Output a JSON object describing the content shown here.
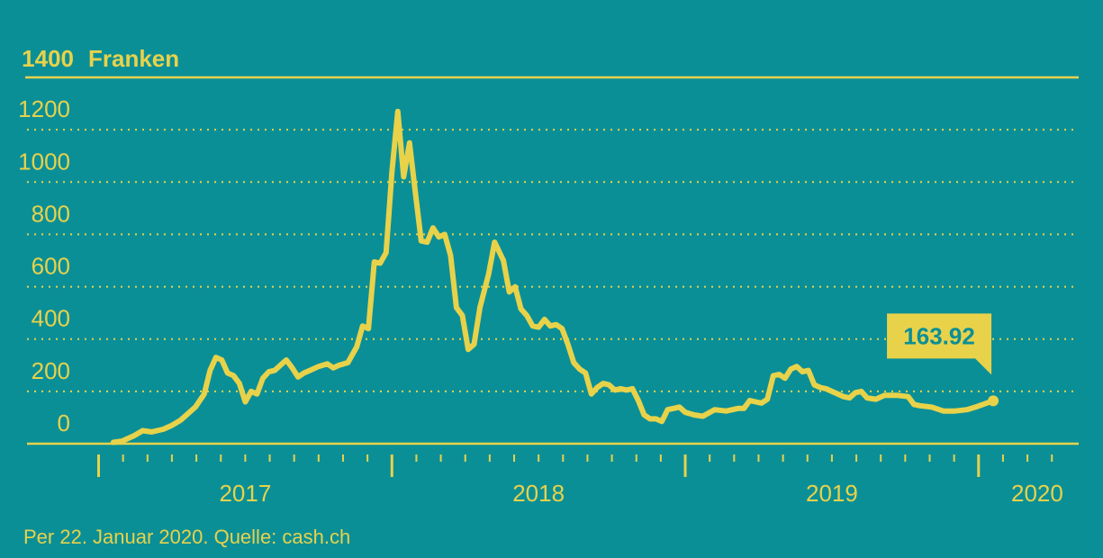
{
  "chart_data": {
    "type": "line",
    "ylabel": "Franken",
    "ylim": [
      0,
      1400
    ],
    "y_ticks": [
      0,
      200,
      400,
      600,
      800,
      1000,
      1200,
      1400
    ],
    "x_range": [
      2016.98,
      2020.28
    ],
    "x_year_labels": [
      {
        "label": "2017",
        "x": 2017.5
      },
      {
        "label": "2018",
        "x": 2018.5
      },
      {
        "label": "2019",
        "x": 2019.5
      },
      {
        "label": "2020",
        "x": 2020.2
      }
    ],
    "year_boundaries": [
      2017.0,
      2018.0,
      2019.0,
      2020.0
    ],
    "grid": true,
    "line_color": "#e8d24a",
    "series": [
      {
        "values": [
          [
            2017.05,
            5
          ],
          [
            2017.08,
            10
          ],
          [
            2017.12,
            30
          ],
          [
            2017.15,
            50
          ],
          [
            2017.18,
            45
          ],
          [
            2017.22,
            55
          ],
          [
            2017.25,
            70
          ],
          [
            2017.28,
            90
          ],
          [
            2017.3,
            110
          ],
          [
            2017.33,
            140
          ],
          [
            2017.36,
            190
          ],
          [
            2017.38,
            280
          ],
          [
            2017.4,
            330
          ],
          [
            2017.42,
            320
          ],
          [
            2017.44,
            270
          ],
          [
            2017.46,
            260
          ],
          [
            2017.48,
            230
          ],
          [
            2017.5,
            160
          ],
          [
            2017.52,
            200
          ],
          [
            2017.54,
            190
          ],
          [
            2017.56,
            250
          ],
          [
            2017.58,
            275
          ],
          [
            2017.6,
            280
          ],
          [
            2017.62,
            300
          ],
          [
            2017.64,
            320
          ],
          [
            2017.66,
            290
          ],
          [
            2017.68,
            255
          ],
          [
            2017.7,
            270
          ],
          [
            2017.72,
            280
          ],
          [
            2017.75,
            295
          ],
          [
            2017.78,
            305
          ],
          [
            2017.8,
            290
          ],
          [
            2017.82,
            300
          ],
          [
            2017.85,
            310
          ],
          [
            2017.88,
            370
          ],
          [
            2017.9,
            450
          ],
          [
            2017.92,
            440
          ],
          [
            2017.94,
            695
          ],
          [
            2017.96,
            690
          ],
          [
            2017.98,
            730
          ],
          [
            2018.0,
            1040
          ],
          [
            2018.02,
            1270
          ],
          [
            2018.04,
            1020
          ],
          [
            2018.06,
            1150
          ],
          [
            2018.08,
            960
          ],
          [
            2018.1,
            775
          ],
          [
            2018.12,
            770
          ],
          [
            2018.14,
            825
          ],
          [
            2018.16,
            790
          ],
          [
            2018.18,
            800
          ],
          [
            2018.2,
            720
          ],
          [
            2018.22,
            520
          ],
          [
            2018.24,
            490
          ],
          [
            2018.26,
            360
          ],
          [
            2018.28,
            380
          ],
          [
            2018.3,
            520
          ],
          [
            2018.33,
            650
          ],
          [
            2018.35,
            770
          ],
          [
            2018.38,
            700
          ],
          [
            2018.4,
            580
          ],
          [
            2018.42,
            600
          ],
          [
            2018.44,
            515
          ],
          [
            2018.46,
            490
          ],
          [
            2018.48,
            450
          ],
          [
            2018.5,
            445
          ],
          [
            2018.52,
            475
          ],
          [
            2018.54,
            450
          ],
          [
            2018.56,
            455
          ],
          [
            2018.58,
            440
          ],
          [
            2018.6,
            380
          ],
          [
            2018.62,
            310
          ],
          [
            2018.64,
            285
          ],
          [
            2018.66,
            270
          ],
          [
            2018.68,
            190
          ],
          [
            2018.7,
            215
          ],
          [
            2018.72,
            230
          ],
          [
            2018.74,
            225
          ],
          [
            2018.76,
            205
          ],
          [
            2018.78,
            210
          ],
          [
            2018.8,
            205
          ],
          [
            2018.82,
            210
          ],
          [
            2018.84,
            165
          ],
          [
            2018.86,
            110
          ],
          [
            2018.88,
            95
          ],
          [
            2018.9,
            95
          ],
          [
            2018.92,
            85
          ],
          [
            2018.94,
            130
          ],
          [
            2018.96,
            135
          ],
          [
            2018.98,
            140
          ],
          [
            2019.0,
            120
          ],
          [
            2019.03,
            110
          ],
          [
            2019.06,
            105
          ],
          [
            2019.1,
            130
          ],
          [
            2019.14,
            125
          ],
          [
            2019.18,
            135
          ],
          [
            2019.2,
            135
          ],
          [
            2019.22,
            165
          ],
          [
            2019.24,
            160
          ],
          [
            2019.26,
            155
          ],
          [
            2019.28,
            170
          ],
          [
            2019.3,
            260
          ],
          [
            2019.32,
            265
          ],
          [
            2019.34,
            250
          ],
          [
            2019.36,
            285
          ],
          [
            2019.38,
            295
          ],
          [
            2019.4,
            275
          ],
          [
            2019.42,
            280
          ],
          [
            2019.44,
            225
          ],
          [
            2019.46,
            215
          ],
          [
            2019.48,
            210
          ],
          [
            2019.5,
            200
          ],
          [
            2019.52,
            190
          ],
          [
            2019.54,
            180
          ],
          [
            2019.56,
            175
          ],
          [
            2019.58,
            195
          ],
          [
            2019.6,
            200
          ],
          [
            2019.62,
            175
          ],
          [
            2019.65,
            170
          ],
          [
            2019.68,
            185
          ],
          [
            2019.72,
            185
          ],
          [
            2019.76,
            180
          ],
          [
            2019.78,
            150
          ],
          [
            2019.8,
            145
          ],
          [
            2019.84,
            140
          ],
          [
            2019.88,
            125
          ],
          [
            2019.92,
            125
          ],
          [
            2019.96,
            130
          ],
          [
            2019.99,
            140
          ],
          [
            2020.05,
            163.92
          ]
        ]
      }
    ],
    "last_value": {
      "x": 2020.05,
      "y": 163.92,
      "label": "163.92"
    }
  },
  "source": "Per 22. Januar 2020. Quelle: cash.ch"
}
